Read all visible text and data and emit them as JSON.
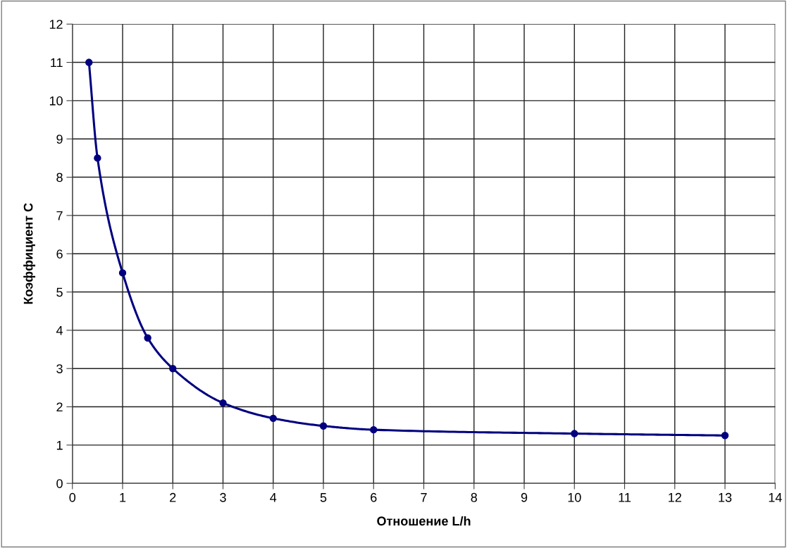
{
  "chart_data": {
    "type": "line",
    "xlabel": "Отношение L/h",
    "ylabel": "Коэффициент С",
    "x": [
      0.33,
      0.5,
      1,
      1.5,
      2,
      3,
      4,
      5,
      6,
      10,
      13
    ],
    "series": [
      {
        "color": "#000080",
        "values": [
          11,
          8.5,
          5.5,
          3.8,
          3.0,
          2.1,
          1.7,
          1.5,
          1.4,
          1.3,
          1.25
        ]
      }
    ],
    "xlim": [
      0,
      14
    ],
    "xticks": [
      0,
      1,
      2,
      3,
      4,
      5,
      6,
      7,
      8,
      9,
      10,
      11,
      12,
      13,
      14
    ],
    "ylim": [
      0,
      12
    ],
    "yticks": [
      0,
      1,
      2,
      3,
      4,
      5,
      6,
      7,
      8,
      9,
      10,
      11,
      12
    ],
    "grid": true,
    "marker": "circle",
    "line_style": "solid"
  }
}
